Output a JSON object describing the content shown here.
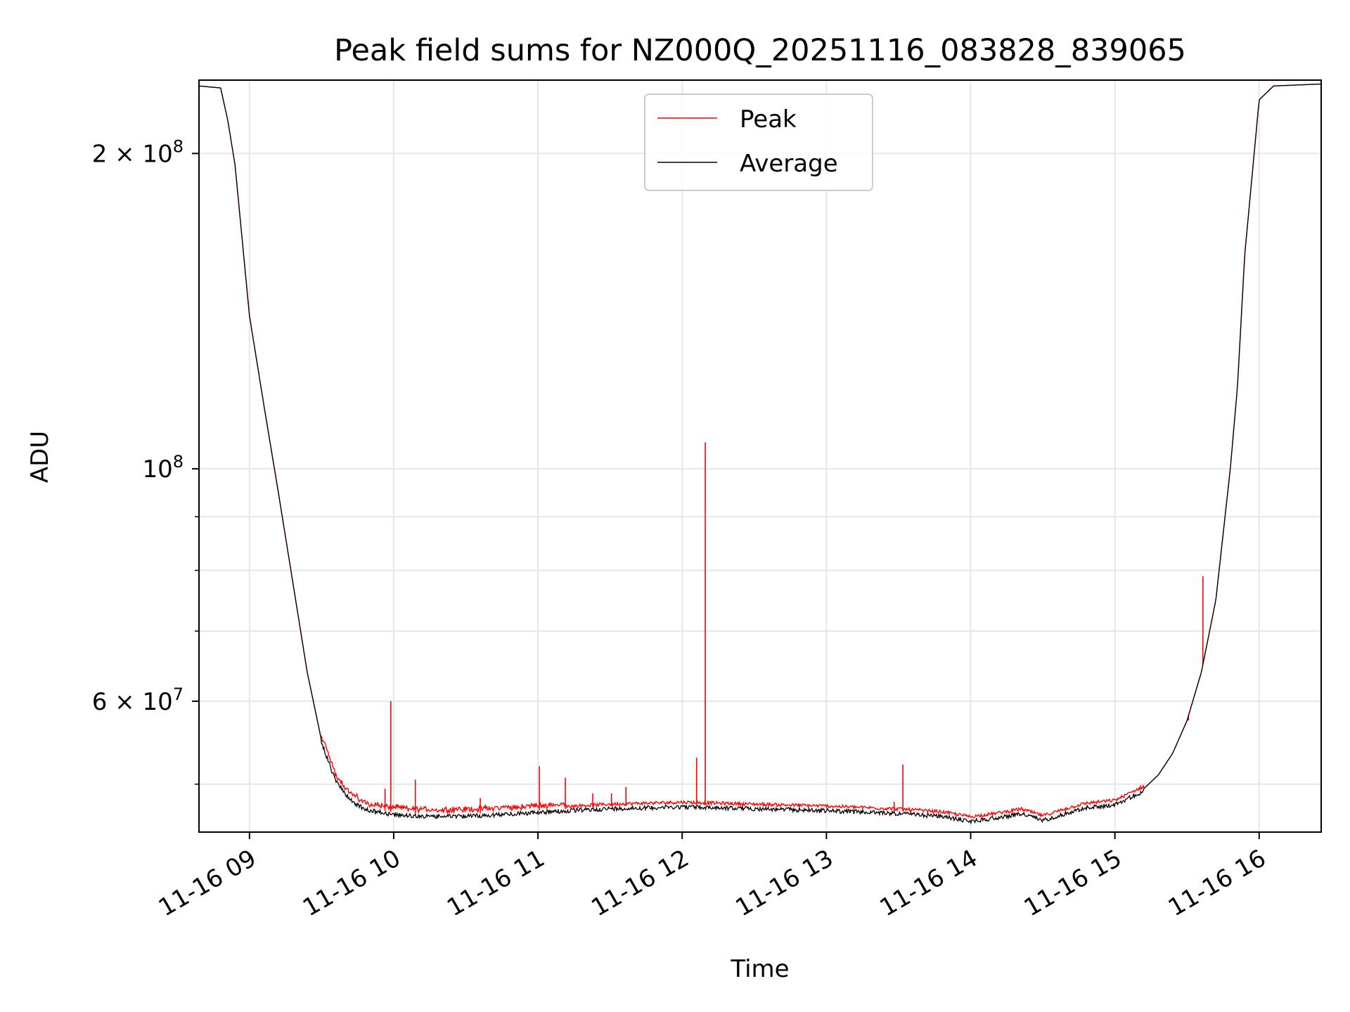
{
  "chart_data": {
    "type": "line",
    "title": "Peak field sums for NZ000Q_20251116_083828_839065",
    "xlabel": "Time",
    "ylabel": "ADU",
    "y_scale": "log",
    "ylim": [
      45000000,
      235000000
    ],
    "xlim_hours": [
      8.65,
      16.43
    ],
    "grid": true,
    "legend_position": "upper center",
    "x_ticks": [
      {
        "hour": 9,
        "label": "11-16 09"
      },
      {
        "hour": 10,
        "label": "11-16 10"
      },
      {
        "hour": 11,
        "label": "11-16 11"
      },
      {
        "hour": 12,
        "label": "11-16 12"
      },
      {
        "hour": 13,
        "label": "11-16 13"
      },
      {
        "hour": 14,
        "label": "11-16 14"
      },
      {
        "hour": 15,
        "label": "11-16 15"
      },
      {
        "hour": 16,
        "label": "11-16 16"
      }
    ],
    "y_major_ticks": [
      {
        "value": 200000000,
        "base": "2 × 10",
        "exp": "8"
      },
      {
        "value": 100000000,
        "base": "10",
        "exp": "8"
      },
      {
        "value": 60000000,
        "base": "6 × 10",
        "exp": "7"
      }
    ],
    "y_minor_ticks": [
      50000000,
      70000000,
      80000000,
      90000000
    ],
    "average_curve": [
      [
        8.65,
        232000000
      ],
      [
        8.8,
        231000000
      ],
      [
        8.85,
        215000000
      ],
      [
        8.9,
        195000000
      ],
      [
        9.0,
        140000000
      ],
      [
        9.1,
        115000000
      ],
      [
        9.2,
        95000000
      ],
      [
        9.3,
        78000000
      ],
      [
        9.4,
        64000000
      ],
      [
        9.5,
        55000000
      ],
      [
        9.6,
        50500000
      ],
      [
        9.7,
        48500000
      ],
      [
        9.8,
        47500000
      ],
      [
        10.0,
        47000000
      ],
      [
        10.2,
        46800000
      ],
      [
        10.5,
        46800000
      ],
      [
        11.0,
        47200000
      ],
      [
        11.5,
        47600000
      ],
      [
        12.0,
        47800000
      ],
      [
        12.5,
        47600000
      ],
      [
        13.0,
        47400000
      ],
      [
        13.5,
        47100000
      ],
      [
        13.8,
        46800000
      ],
      [
        14.0,
        46300000
      ],
      [
        14.2,
        46700000
      ],
      [
        14.35,
        47100000
      ],
      [
        14.5,
        46400000
      ],
      [
        14.7,
        47300000
      ],
      [
        14.8,
        47700000
      ],
      [
        15.0,
        48000000
      ],
      [
        15.2,
        49500000
      ],
      [
        15.3,
        51000000
      ],
      [
        15.4,
        53500000
      ],
      [
        15.5,
        57500000
      ],
      [
        15.6,
        64000000
      ],
      [
        15.7,
        75000000
      ],
      [
        15.8,
        100000000
      ],
      [
        15.85,
        120000000
      ],
      [
        15.9,
        160000000
      ],
      [
        16.0,
        225000000
      ],
      [
        16.1,
        232000000
      ],
      [
        16.43,
        233000000
      ]
    ],
    "peak_spikes": [
      {
        "hour": 9.94,
        "value": 49500000
      },
      {
        "hour": 9.98,
        "value": 60000000
      },
      {
        "hour": 10.15,
        "value": 50500000
      },
      {
        "hour": 10.6,
        "value": 48500000
      },
      {
        "hour": 11.01,
        "value": 52000000
      },
      {
        "hour": 11.19,
        "value": 50700000
      },
      {
        "hour": 11.38,
        "value": 49000000
      },
      {
        "hour": 11.51,
        "value": 49000000
      },
      {
        "hour": 11.61,
        "value": 49700000
      },
      {
        "hour": 12.1,
        "value": 53000000
      },
      {
        "hour": 12.16,
        "value": 106000000
      },
      {
        "hour": 13.47,
        "value": 48100000
      },
      {
        "hour": 13.53,
        "value": 52200000
      },
      {
        "hour": 15.51,
        "value": 57500000
      },
      {
        "hour": 15.61,
        "value": 79000000
      }
    ],
    "series": [
      {
        "name": "Peak",
        "color": "#ff0000"
      },
      {
        "name": "Average",
        "color": "#000000"
      }
    ]
  }
}
